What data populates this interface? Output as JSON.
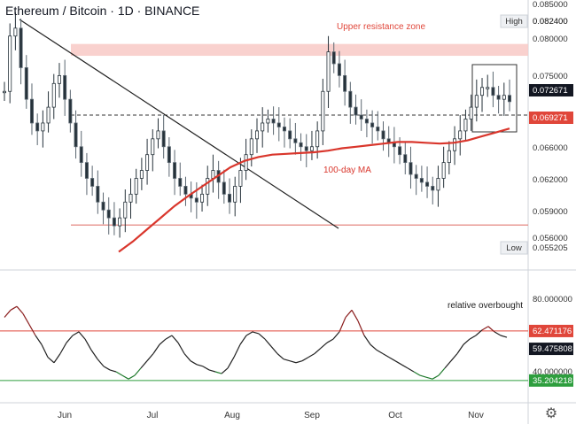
{
  "header": {
    "title": "Ethereum / Bitcoin · 1D · BINANCE"
  },
  "chart_data": [
    {
      "type": "candlestick",
      "title": "Ethereum / Bitcoin · 1D · BINANCE",
      "x_ticks": [
        "Jun",
        "Jul",
        "Aug",
        "Sep",
        "Oct",
        "Nov"
      ],
      "y_ticks": [
        "0.085000",
        "0.082400",
        "0.080000",
        "0.075000",
        "0.072671",
        "0.069271",
        "0.066000",
        "0.062000",
        "0.059000",
        "0.056000",
        "0.055205"
      ],
      "ylim": [
        0.0535,
        0.085
      ],
      "price_labels": {
        "high": {
          "label": "High",
          "value": "0.082400"
        },
        "last": {
          "value": "0.072671",
          "color": "#131722"
        },
        "ma": {
          "value": "0.069271",
          "color": "#e0463a"
        },
        "low": {
          "label": "Low",
          "value": "0.055205"
        }
      },
      "annotations": {
        "resistance_zone": "Upper resistance zone",
        "ma_label": "100-day MA"
      },
      "resistance_zone_range": [
        0.0785,
        0.08
      ],
      "support_level": 0.0571,
      "current_level": 0.071,
      "trendline": {
        "from": [
          "Late May",
          0.084
        ],
        "to": [
          "Mid Aug",
          0.0571
        ]
      },
      "candles_close_path": [
        0.074,
        0.081,
        0.082,
        0.077,
        0.073,
        0.07,
        0.069,
        0.07,
        0.072,
        0.075,
        0.076,
        0.073,
        0.07,
        0.067,
        0.065,
        0.063,
        0.062,
        0.06,
        0.059,
        0.058,
        0.057,
        0.058,
        0.06,
        0.061,
        0.063,
        0.064,
        0.066,
        0.068,
        0.069,
        0.067,
        0.065,
        0.063,
        0.062,
        0.061,
        0.0605,
        0.06,
        0.061,
        0.063,
        0.064,
        0.0625,
        0.061,
        0.06,
        0.062,
        0.064,
        0.066,
        0.068,
        0.069,
        0.07,
        0.0705,
        0.07,
        0.0695,
        0.069,
        0.068,
        0.0675,
        0.067,
        0.0665,
        0.067,
        0.069,
        0.074,
        0.079,
        0.0775,
        0.076,
        0.074,
        0.072,
        0.071,
        0.0705,
        0.07,
        0.0695,
        0.069,
        0.068,
        0.0675,
        0.067,
        0.066,
        0.065,
        0.0635,
        0.063,
        0.0625,
        0.062,
        0.0615,
        0.063,
        0.065,
        0.0665,
        0.068,
        0.069,
        0.0705,
        0.072,
        0.0735,
        0.0745,
        0.0745,
        0.0735,
        0.073,
        0.0735,
        0.0727
      ],
      "ma_path": [
        0.0537,
        0.055,
        0.0565,
        0.058,
        0.0595,
        0.0608,
        0.062,
        0.0632,
        0.0644,
        0.0652,
        0.0657,
        0.066,
        0.0661,
        0.0662,
        0.0663,
        0.0665,
        0.0668,
        0.067,
        0.0672,
        0.0674,
        0.0676,
        0.0676,
        0.0675,
        0.0674,
        0.0675,
        0.0678,
        0.0683,
        0.0688,
        0.0693
      ]
    },
    {
      "type": "line",
      "title": "",
      "y_ticks": [
        "80.000000",
        "40.000000"
      ],
      "ylim": [
        30,
        90
      ],
      "price_labels": {
        "overbought": {
          "value": "62.471176",
          "color": "#e0463a"
        },
        "current": {
          "value": "59.475808",
          "color": "#131722"
        },
        "oversold": {
          "value": "35.204218",
          "color": "#2e9e3e"
        }
      },
      "annotations": {
        "overbought_label": "relative overbought"
      },
      "overbought_level": 62.47,
      "oversold_level": 35.2,
      "values": [
        70,
        74,
        76,
        72,
        66,
        60,
        55,
        48,
        45,
        50,
        56,
        60,
        62,
        58,
        52,
        47,
        43,
        41,
        40,
        38,
        36,
        38,
        42,
        46,
        50,
        55,
        58,
        60,
        56,
        50,
        46,
        44,
        43,
        41,
        40,
        39,
        42,
        48,
        55,
        60,
        62,
        61,
        58,
        54,
        50,
        47,
        46,
        45,
        46,
        48,
        50,
        53,
        56,
        58,
        62,
        70,
        74,
        68,
        60,
        55,
        52,
        50,
        48,
        46,
        44,
        42,
        40,
        38,
        37,
        36,
        38,
        42,
        46,
        50,
        55,
        58,
        60,
        63,
        65,
        62,
        60,
        59
      ]
    }
  ],
  "footer": {
    "settings_icon": "gear-icon"
  }
}
